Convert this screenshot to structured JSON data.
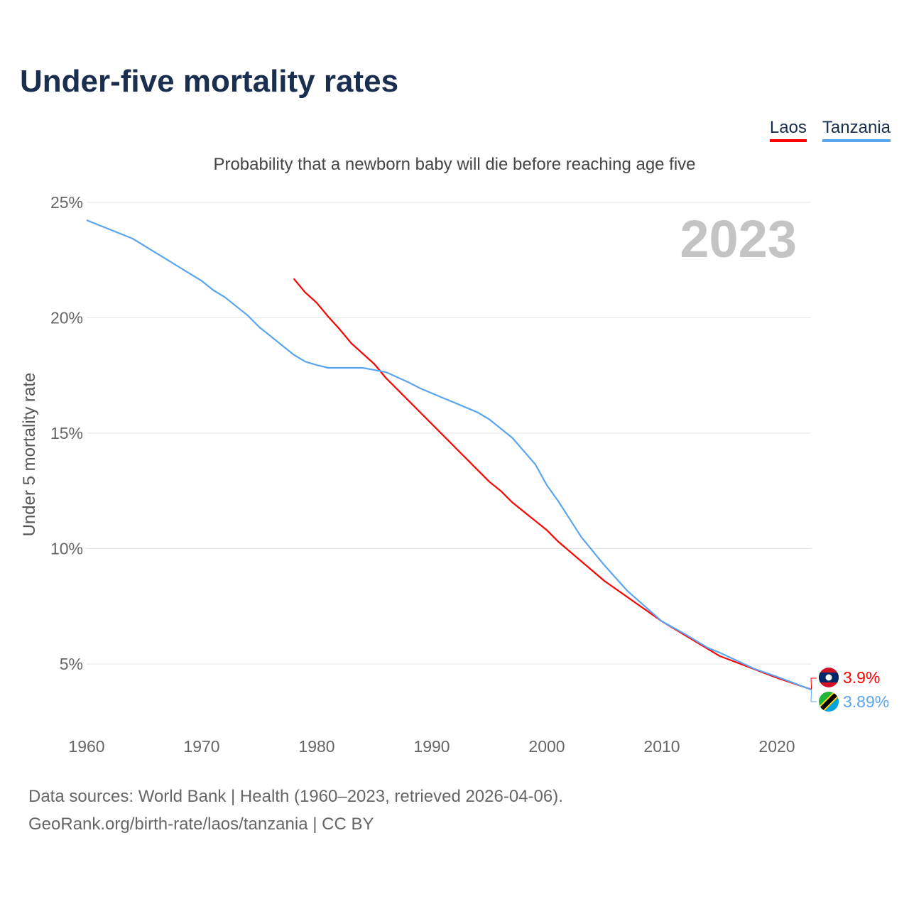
{
  "chart_data": {
    "type": "line",
    "title": "Under-five mortality rates",
    "subtitle": "Probability that a newborn baby will die before reaching age five",
    "ylabel": "Under 5 mortality rate",
    "xlabel": "",
    "xlim": [
      1960,
      2023
    ],
    "ylim": [
      2.5,
      25
    ],
    "xticks": [
      1960,
      1970,
      1980,
      1990,
      2000,
      2010,
      2020
    ],
    "yticks": [
      5,
      10,
      15,
      20,
      25
    ],
    "ytick_labels": [
      "5%",
      "10%",
      "15%",
      "20%",
      "25%"
    ],
    "year_label": "2023",
    "grid": true,
    "legend_position": "top-right",
    "series": [
      {
        "name": "Laos",
        "color": "#ff0000",
        "end_label": "3.9%",
        "x": [
          1978,
          1979,
          1980,
          1981,
          1982,
          1983,
          1984,
          1985,
          1986,
          1995,
          1996,
          1997,
          2000,
          2001,
          2005,
          2010,
          2015,
          2020,
          2023
        ],
        "y": [
          21.7,
          21.1,
          20.65,
          20.05,
          19.5,
          18.9,
          18.45,
          18.0,
          17.4,
          12.9,
          12.5,
          12.0,
          10.8,
          10.3,
          8.6,
          6.85,
          5.35,
          4.4,
          3.9
        ]
      },
      {
        "name": "Tanzania",
        "color": "#5aa5f0",
        "end_label": "3.89%",
        "x": [
          1960,
          1964,
          1970,
          1971,
          1972,
          1974,
          1975,
          1978,
          1979,
          1980,
          1981,
          1984,
          1986,
          1988,
          1989,
          1994,
          1995,
          1997,
          1999,
          2000,
          2001,
          2003,
          2005,
          2007,
          2010,
          2012,
          2014,
          2015,
          2018,
          2020,
          2023
        ],
        "y": [
          24.23,
          23.43,
          21.6,
          21.2,
          20.9,
          20.1,
          19.6,
          18.4,
          18.1,
          17.95,
          17.83,
          17.83,
          17.65,
          17.2,
          16.94,
          15.9,
          15.6,
          14.8,
          13.65,
          12.75,
          12.05,
          10.5,
          9.28,
          8.17,
          6.85,
          6.3,
          5.7,
          5.5,
          4.8,
          4.45,
          3.89
        ]
      }
    ]
  },
  "sources": {
    "line1": "Data sources: World Bank | Health (1960–2023, retrieved 2026-04-06).",
    "line2": "GeoRank.org/birth-rate/laos/tanzania | CC BY"
  }
}
